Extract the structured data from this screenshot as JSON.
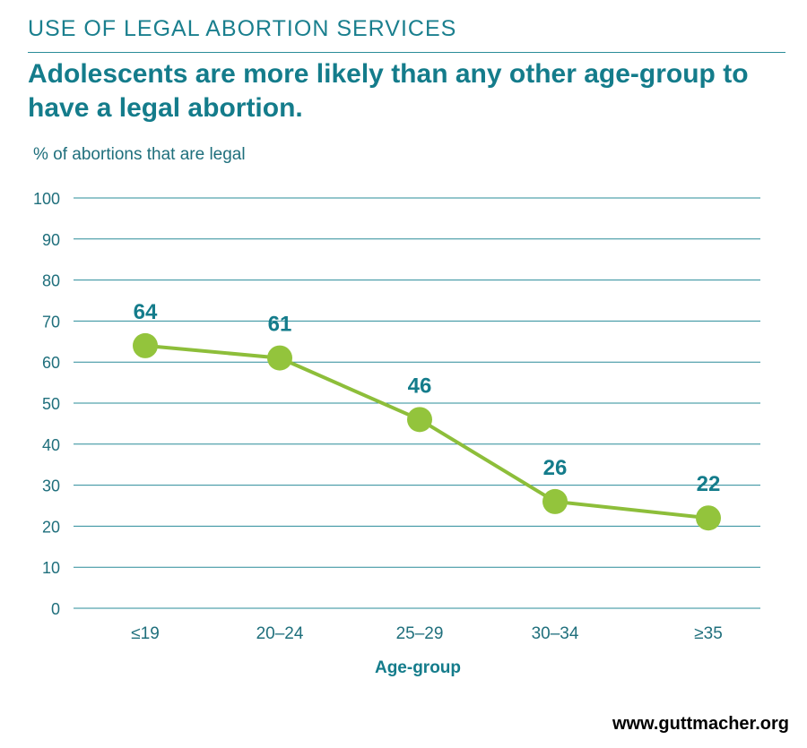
{
  "header": {
    "kicker": "USE OF LEGAL ABORTION SERVICES",
    "title": "Adolescents are more likely than any other age-group to have a legal abortion."
  },
  "footer": {
    "source": "www.guttmacher.org"
  },
  "colors": {
    "accent": "#147c8b",
    "grid": "#2a8c99",
    "line": "#8dbe3a",
    "marker": "#93c43c"
  },
  "chart_data": {
    "type": "line",
    "title": "",
    "xlabel": "Age-group",
    "ylabel": "% of abortions that are legal",
    "categories": [
      "≤19",
      "20–24",
      "25–29",
      "30–34",
      "≥35"
    ],
    "series": [
      {
        "values": [
          64,
          61,
          46,
          26,
          22
        ]
      }
    ],
    "ylim": [
      0,
      100
    ],
    "yticks": [
      0,
      10,
      20,
      30,
      40,
      50,
      60,
      70,
      80,
      90,
      100
    ],
    "grid": true,
    "data_labels": [
      "64",
      "61",
      "46",
      "26",
      "22"
    ]
  }
}
